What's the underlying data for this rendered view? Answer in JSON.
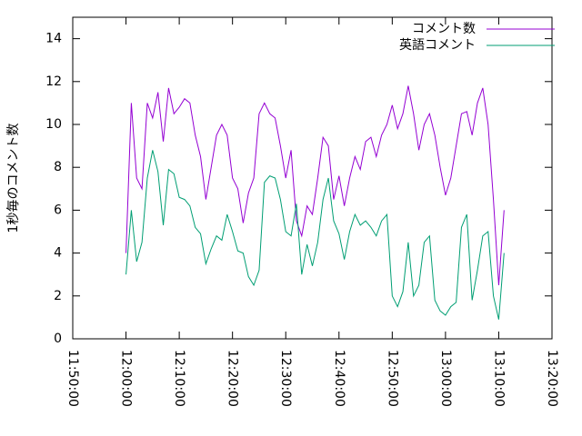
{
  "chart_data": {
    "type": "line",
    "ylabel": "1秒毎のコメント数",
    "x": [
      "12:00:00",
      "12:01:00",
      "12:02:00",
      "12:03:00",
      "12:04:00",
      "12:05:00",
      "12:06:00",
      "12:07:00",
      "12:08:00",
      "12:09:00",
      "12:10:00",
      "12:11:00",
      "12:12:00",
      "12:13:00",
      "12:14:00",
      "12:15:00",
      "12:16:00",
      "12:17:00",
      "12:18:00",
      "12:19:00",
      "12:20:00",
      "12:21:00",
      "12:22:00",
      "12:23:00",
      "12:24:00",
      "12:25:00",
      "12:26:00",
      "12:27:00",
      "12:28:00",
      "12:29:00",
      "12:30:00",
      "12:31:00",
      "12:32:00",
      "12:33:00",
      "12:34:00",
      "12:35:00",
      "12:36:00",
      "12:37:00",
      "12:38:00",
      "12:39:00",
      "12:40:00",
      "12:41:00",
      "12:42:00",
      "12:43:00",
      "12:44:00",
      "12:45:00",
      "12:46:00",
      "12:47:00",
      "12:48:00",
      "12:49:00",
      "12:50:00",
      "12:51:00",
      "12:52:00",
      "12:53:00",
      "12:54:00",
      "12:55:00",
      "12:56:00",
      "12:57:00",
      "12:58:00",
      "12:59:00",
      "13:00:00",
      "13:01:00",
      "13:02:00",
      "13:03:00",
      "13:04:00",
      "13:05:00",
      "13:06:00",
      "13:07:00",
      "13:08:00",
      "13:09:00",
      "13:10:00",
      "13:11:00"
    ],
    "series": [
      {
        "name": "コメント数",
        "color": "#9400d3",
        "values": [
          4.0,
          11.0,
          7.5,
          7.0,
          11.0,
          10.3,
          11.5,
          9.2,
          11.7,
          10.5,
          10.8,
          11.2,
          11.0,
          9.5,
          8.5,
          6.5,
          8.0,
          9.5,
          10.0,
          9.5,
          7.5,
          7.0,
          5.4,
          6.8,
          7.5,
          10.5,
          11.0,
          10.5,
          10.3,
          9.0,
          7.5,
          8.8,
          5.5,
          4.8,
          6.2,
          5.8,
          7.5,
          9.4,
          9.0,
          6.5,
          7.6,
          6.2,
          7.5,
          8.5,
          7.9,
          9.2,
          9.4,
          8.5,
          9.5,
          10.0,
          10.9,
          9.8,
          10.5,
          11.8,
          10.5,
          8.8,
          10.0,
          10.5,
          9.5,
          8.0,
          6.7,
          7.5,
          9.0,
          10.5,
          10.6,
          9.5,
          11.0,
          11.7,
          10.0,
          6.5,
          2.5,
          6.0
        ]
      },
      {
        "name": "英語コメント",
        "color": "#009e73",
        "values": [
          3.0,
          6.0,
          3.6,
          4.5,
          7.5,
          8.8,
          7.8,
          5.3,
          7.9,
          7.7,
          6.6,
          6.5,
          6.2,
          5.2,
          4.9,
          3.5,
          4.2,
          4.8,
          4.6,
          5.8,
          5.0,
          4.1,
          4.0,
          2.9,
          2.5,
          3.2,
          7.3,
          7.6,
          7.5,
          6.5,
          5.0,
          4.8,
          6.3,
          3.0,
          4.4,
          3.4,
          4.5,
          6.5,
          7.5,
          5.5,
          4.9,
          3.7,
          5.0,
          5.8,
          5.3,
          5.5,
          5.2,
          4.8,
          5.5,
          5.8,
          2.0,
          1.5,
          2.2,
          4.5,
          2.0,
          2.5,
          4.5,
          4.8,
          1.8,
          1.3,
          1.1,
          1.5,
          1.7,
          5.2,
          5.8,
          1.8,
          3.2,
          4.8,
          5.0,
          2.0,
          0.9,
          4.0
        ]
      }
    ],
    "xlim": [
      "11:50:00",
      "13:20:00"
    ],
    "xticks": [
      "11:50:00",
      "12:00:00",
      "12:10:00",
      "12:20:00",
      "12:30:00",
      "12:40:00",
      "12:50:00",
      "13:00:00",
      "13:10:00",
      "13:20:00"
    ],
    "ylim": [
      0,
      15
    ],
    "yticks": [
      0,
      2,
      4,
      6,
      8,
      10,
      12,
      14
    ],
    "legend": "top-right"
  }
}
